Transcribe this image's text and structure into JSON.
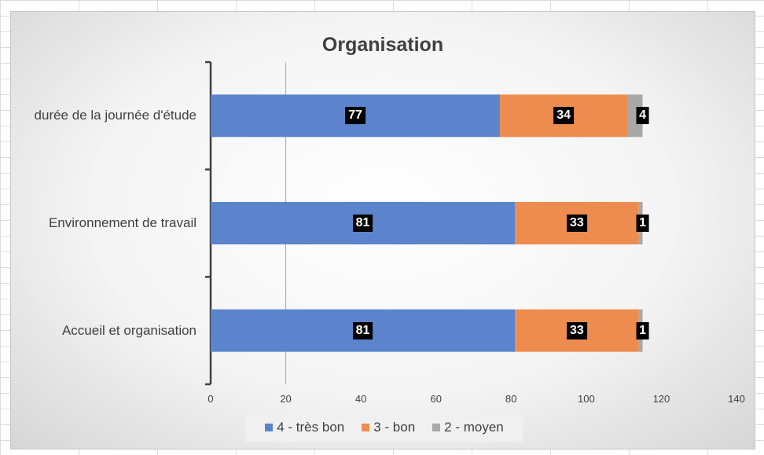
{
  "chart_data": {
    "type": "bar",
    "orientation": "horizontal",
    "stacked": true,
    "title": "Organisation",
    "categories": [
      "durée de la journée d'étude",
      "Environnement de travail",
      "Accueil et organisation"
    ],
    "series": [
      {
        "name": "4 - très bon",
        "color": "#5b84cc",
        "values": [
          77,
          81,
          81
        ]
      },
      {
        "name": "3 - bon",
        "color": "#ed8c4e",
        "values": [
          34,
          33,
          33
        ]
      },
      {
        "name": "2 - moyen",
        "color": "#a8a8a8",
        "values": [
          4,
          1,
          1
        ]
      }
    ],
    "xlim": [
      0,
      140
    ],
    "xticks": [
      "0",
      "20",
      "40",
      "60",
      "80",
      "100",
      "120",
      "140"
    ],
    "data_labels": true,
    "legend_position": "bottom"
  }
}
